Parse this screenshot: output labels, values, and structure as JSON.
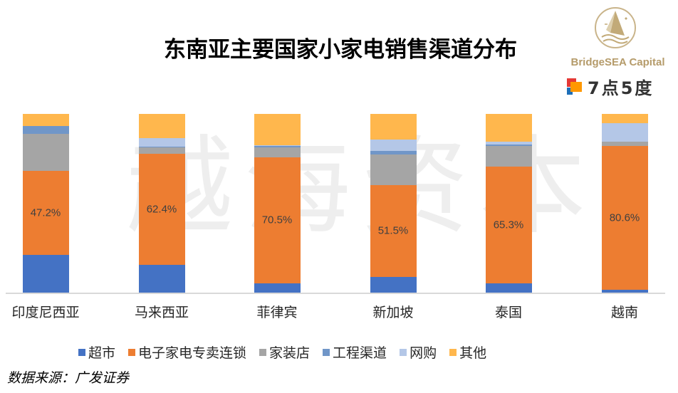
{
  "title": "东南亚主要国家小家电销售渠道分布",
  "watermark": [
    "越",
    "海",
    "资",
    "本"
  ],
  "logo": {
    "brand_name": "BridgeSEA Capital",
    "secondary_brand": "7点5度",
    "emblem_icon": "sailboat-wave-circle-icon"
  },
  "source": "数据来源：广发证券",
  "colors": {
    "超市": "#4472c4",
    "电子家电专卖连锁": "#ed7d31",
    "家装店": "#a5a5a5",
    "工程渠道": "#7096c8",
    "网购": "#b4c7e7",
    "其他": "#ffb74d",
    "label_text": "#404040",
    "axis": "#d9d9d9",
    "logo_gold": "#b59b6a"
  },
  "legend": [
    {
      "label": "超市"
    },
    {
      "label": "电子家电专卖连锁"
    },
    {
      "label": "家装店"
    },
    {
      "label": "工程渠道"
    },
    {
      "label": "网购"
    },
    {
      "label": "其他"
    }
  ],
  "chart_data": {
    "type": "bar",
    "stacked": true,
    "normalized": true,
    "title": "东南亚主要国家小家电销售渠道分布",
    "xlabel": "",
    "ylabel": "",
    "ylim": [
      0,
      100
    ],
    "grid": false,
    "legend_position": "bottom",
    "categories": [
      "印度尼西亚",
      "马来西亚",
      "菲律宾",
      "新加坡",
      "泰国",
      "越南"
    ],
    "series": [
      {
        "name": "超市",
        "values": [
          21.1,
          15.5,
          5.2,
          8.8,
          5.2,
          1.6
        ]
      },
      {
        "name": "电子家电专卖连锁",
        "values": [
          47.2,
          62.4,
          70.5,
          51.5,
          65.3,
          80.6
        ]
      },
      {
        "name": "家装店",
        "values": [
          20.7,
          3.2,
          5.6,
          17.1,
          11.6,
          2.4
        ]
      },
      {
        "name": "工程渠道",
        "values": [
          4.4,
          0.4,
          0.8,
          2.0,
          0.8,
          0.0
        ]
      },
      {
        "name": "网购",
        "values": [
          0.0,
          4.8,
          0.4,
          6.4,
          1.6,
          10.4
        ]
      },
      {
        "name": "其他",
        "values": [
          6.6,
          13.7,
          17.5,
          14.2,
          15.5,
          5.0
        ]
      }
    ],
    "data_labels": {
      "series": "电子家电专卖连锁",
      "labels": [
        "47.2%",
        "62.4%",
        "70.5%",
        "51.5%",
        "65.3%",
        "80.6%"
      ]
    }
  }
}
